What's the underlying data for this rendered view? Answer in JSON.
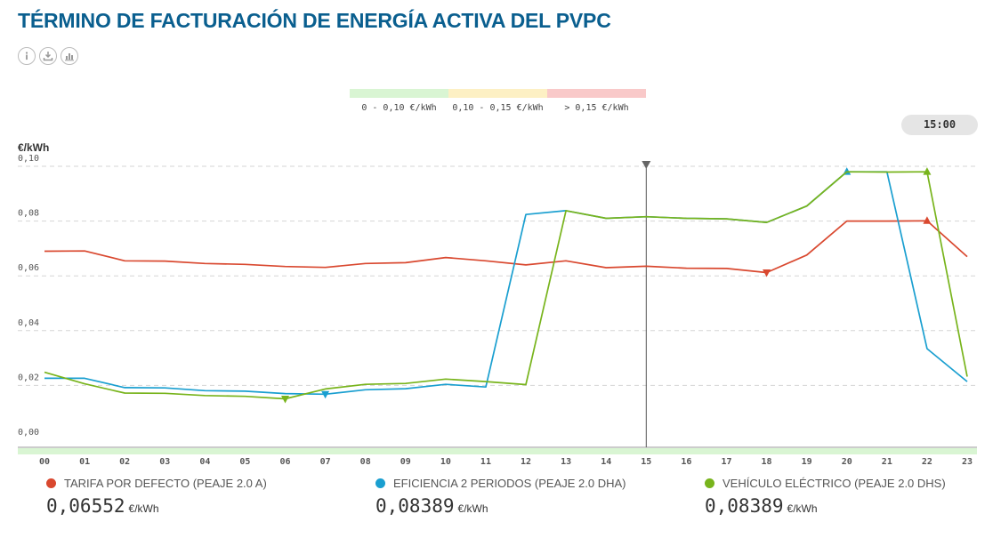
{
  "header": {
    "title": "TÉRMINO DE FACTURACIÓN DE ENERGÍA ACTIVA DEL PVPC"
  },
  "toolbar": {
    "icons": [
      "info-icon",
      "download-icon",
      "chart-icon"
    ]
  },
  "price_scale": [
    {
      "label": "0 - 0,10 €/kWh",
      "color": "#d9f5d3"
    },
    {
      "label": "0,10 - 0,15 €/kWh",
      "color": "#fdf0c4"
    },
    {
      "label": "> 0,15 €/kWh",
      "color": "#f9c9c9"
    }
  ],
  "time_badge": "15:00",
  "chart_data": {
    "type": "line",
    "ylabel": "€/kWh",
    "ylim": [
      0,
      0.1
    ],
    "yticks": [
      "0,00",
      "0,02",
      "0,04",
      "0,06",
      "0,08",
      "0,10"
    ],
    "yticks_values": [
      0,
      0.02,
      0.04,
      0.06,
      0.08,
      0.1
    ],
    "x": [
      "00",
      "01",
      "02",
      "03",
      "04",
      "05",
      "06",
      "07",
      "08",
      "09",
      "10",
      "11",
      "12",
      "13",
      "14",
      "15",
      "16",
      "17",
      "18",
      "19",
      "20",
      "21",
      "22",
      "23"
    ],
    "cursor": "15",
    "grid": true,
    "series": [
      {
        "name": "TARIFA POR DEFECTO (PEAJE 2.0 A)",
        "color": "#d9482f",
        "values": [
          0.069,
          0.0691,
          0.0655,
          0.0654,
          0.0645,
          0.0642,
          0.0634,
          0.0631,
          0.0645,
          0.0648,
          0.0667,
          0.0655,
          0.064,
          0.0655,
          0.063,
          0.0635,
          0.0628,
          0.0627,
          0.0612,
          0.0676,
          0.08,
          0.08,
          0.0801,
          0.067
        ],
        "markers": [
          {
            "x": "18",
            "dir": "down"
          },
          {
            "x": "22",
            "dir": "up"
          }
        ]
      },
      {
        "name": "EFICIENCIA 2 PERIODOS (PEAJE 2.0 DHA)",
        "color": "#1a9fd0",
        "values": [
          0.0226,
          0.0226,
          0.0192,
          0.0191,
          0.0181,
          0.0179,
          0.017,
          0.0168,
          0.0184,
          0.0188,
          0.0204,
          0.0194,
          0.0824,
          0.0838,
          0.081,
          0.0816,
          0.081,
          0.0808,
          0.0795,
          0.0855,
          0.098,
          0.098,
          0.0334,
          0.0214
        ],
        "markers": [
          {
            "x": "07",
            "dir": "down"
          },
          {
            "x": "20",
            "dir": "up"
          }
        ]
      },
      {
        "name": "VEHÍCULO ELÉCTRICO (PEAJE 2.0 DHS)",
        "color": "#78b41c",
        "values": [
          0.0248,
          0.0206,
          0.0172,
          0.0171,
          0.0163,
          0.016,
          0.0151,
          0.0187,
          0.0204,
          0.0207,
          0.0223,
          0.0214,
          0.0203,
          0.0838,
          0.081,
          0.0816,
          0.081,
          0.0808,
          0.0795,
          0.0855,
          0.098,
          0.0979,
          0.098,
          0.0232
        ],
        "markers": [
          {
            "x": "06",
            "dir": "down"
          },
          {
            "x": "22",
            "dir": "up"
          }
        ]
      }
    ]
  },
  "legend": [
    {
      "label": "TARIFA POR DEFECTO (PEAJE 2.0 A)",
      "value": "0,06552",
      "unit": "€/kWh",
      "color": "#d9482f"
    },
    {
      "label": "EFICIENCIA 2 PERIODOS (PEAJE 2.0 DHA)",
      "value": "0,08389",
      "unit": "€/kWh",
      "color": "#1a9fd0"
    },
    {
      "label": "VEHÍCULO ELÉCTRICO (PEAJE 2.0 DHS)",
      "value": "0,08389",
      "unit": "€/kWh",
      "color": "#78b41c"
    }
  ]
}
